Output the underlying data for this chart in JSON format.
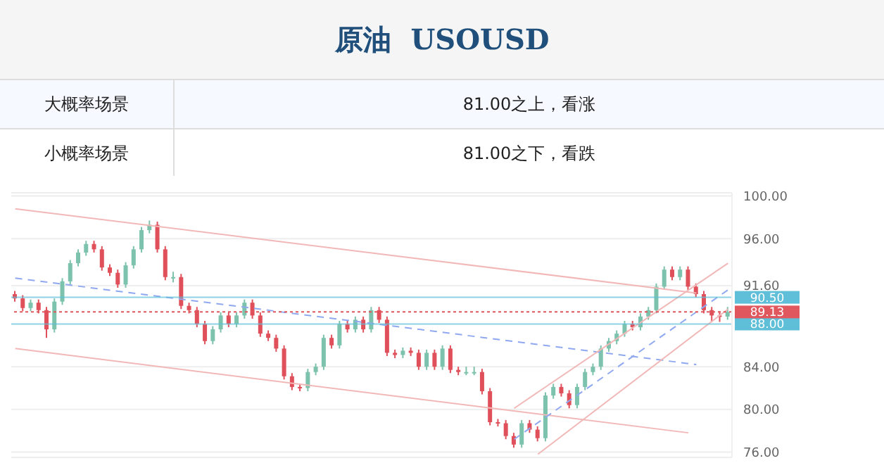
{
  "chart_data": {
    "type": "candlestick",
    "title": "原油  USOUSD",
    "annotations": [
      "大概率场景",
      "81.00之上，看涨",
      "小概率场景",
      "81.00之下，看跌"
    ],
    "categories": [
      null,
      null,
      null,
      null,
      null,
      null,
      null,
      null,
      null,
      null,
      null,
      null,
      null,
      null,
      null,
      null,
      null,
      null,
      null,
      null,
      null,
      null,
      null,
      null,
      null,
      null,
      null,
      null,
      null,
      null,
      null,
      null,
      null,
      null,
      null,
      null,
      null,
      null,
      null,
      null,
      null,
      null,
      null,
      null,
      null,
      null,
      null,
      null,
      null,
      null,
      null,
      null,
      null,
      null,
      null,
      null,
      null,
      null,
      null,
      null,
      null,
      null,
      null,
      null,
      null,
      null,
      null,
      null,
      null,
      null,
      null,
      null,
      null,
      null,
      null,
      null,
      null,
      null,
      null,
      null,
      null,
      null,
      null,
      null,
      null,
      null,
      null,
      null,
      null,
      null,
      null
    ],
    "ohlc": [
      [
        90.8,
        91.1,
        90.1,
        90.4
      ],
      [
        90.4,
        90.7,
        89.2,
        89.5
      ],
      [
        89.5,
        90.3,
        89.2,
        90
      ],
      [
        90,
        90.3,
        89,
        89.3
      ],
      [
        89.3,
        89.6,
        86.7,
        87.5
      ],
      [
        87.5,
        90.4,
        87.2,
        90.1
      ],
      [
        90.1,
        92.3,
        89.8,
        92
      ],
      [
        92,
        94,
        91.7,
        93.7
      ],
      [
        93.7,
        95,
        93.4,
        94.7
      ],
      [
        94.7,
        95.8,
        94.4,
        95.5
      ],
      [
        95.5,
        95.8,
        94.7,
        95
      ],
      [
        95,
        95.3,
        93,
        93.3
      ],
      [
        93.3,
        93.6,
        92.5,
        92.8
      ],
      [
        92.8,
        93.1,
        91.4,
        91.7
      ],
      [
        91.7,
        93.8,
        91.4,
        93.5
      ],
      [
        93.5,
        95.3,
        93.2,
        95
      ],
      [
        95,
        97.1,
        94.7,
        96.8
      ],
      [
        96.8,
        97.7,
        96.5,
        97.3
      ],
      [
        97.3,
        97.6,
        94.7,
        95
      ],
      [
        95,
        95.3,
        92.1,
        92.4
      ],
      [
        92.4,
        92.9,
        91.9,
        92.4
      ],
      [
        92.4,
        92.7,
        89.4,
        89.7
      ],
      [
        89.7,
        90,
        89,
        89.3
      ],
      [
        89.3,
        89.6,
        87.7,
        88
      ],
      [
        88,
        88.3,
        86.1,
        86.4
      ],
      [
        86.4,
        87.8,
        86.1,
        87.5
      ],
      [
        87.5,
        89.1,
        87.2,
        88.8
      ],
      [
        88.8,
        89.1,
        87.7,
        88
      ],
      [
        88,
        89.1,
        87.7,
        88.8
      ],
      [
        88.8,
        90.3,
        88.5,
        90
      ],
      [
        90,
        90.3,
        88.5,
        88.8
      ],
      [
        88.8,
        89.1,
        86.8,
        87.1
      ],
      [
        87.1,
        87.4,
        86.4,
        86.7
      ],
      [
        86.7,
        87,
        85.4,
        85.7
      ],
      [
        85.7,
        86,
        82.8,
        83.1
      ],
      [
        83.1,
        83.4,
        81.8,
        82.1
      ],
      [
        82.1,
        82.4,
        81.7,
        82
      ],
      [
        82,
        83.8,
        81.7,
        83.5
      ],
      [
        83.5,
        84.3,
        83.2,
        84
      ],
      [
        84,
        87,
        83.7,
        86.7
      ],
      [
        86.7,
        87,
        85.7,
        86
      ],
      [
        86,
        88.3,
        85.7,
        88
      ],
      [
        88,
        88.3,
        87.2,
        87.5
      ],
      [
        87.5,
        88.7,
        87.2,
        88.4
      ],
      [
        88.4,
        88.7,
        87.2,
        87.5
      ],
      [
        87.5,
        89.6,
        87.2,
        89.3
      ],
      [
        89.3,
        89.6,
        88.1,
        88.4
      ],
      [
        88.4,
        88.7,
        85,
        85.3
      ],
      [
        85.3,
        85.6,
        84.8,
        85.1
      ],
      [
        85.1,
        85.8,
        84.8,
        85.5
      ],
      [
        85.5,
        85.8,
        85,
        85.3
      ],
      [
        85.3,
        85.6,
        83.7,
        84
      ],
      [
        84,
        85.6,
        83.7,
        85.3
      ],
      [
        85.3,
        85.6,
        83.7,
        84
      ],
      [
        84,
        86,
        83.7,
        85.7
      ],
      [
        85.7,
        86,
        83.4,
        83.7
      ],
      [
        83.7,
        84,
        83.2,
        83.5
      ],
      [
        83.5,
        84,
        83.2,
        83.5
      ],
      [
        83.5,
        84,
        83.2,
        83.5
      ],
      [
        83.5,
        83.8,
        81.4,
        81.7
      ],
      [
        81.7,
        82,
        78.5,
        78.8
      ],
      [
        78.8,
        79.1,
        78.4,
        78.7
      ],
      [
        78.7,
        79,
        77.2,
        77.5
      ],
      [
        77.5,
        77.8,
        76.4,
        76.7
      ],
      [
        76.7,
        79,
        76.4,
        78.7
      ],
      [
        78.7,
        79,
        77.8,
        78.1
      ],
      [
        78.1,
        78.4,
        77,
        77.3
      ],
      [
        77.3,
        81.6,
        77,
        81.3
      ],
      [
        81.3,
        82.4,
        81,
        82.1
      ],
      [
        82.1,
        82.4,
        81.2,
        81.5
      ],
      [
        81.5,
        81.8,
        80.1,
        80.4
      ],
      [
        80.4,
        82.4,
        80.1,
        82.1
      ],
      [
        82.1,
        83.8,
        81.8,
        83.5
      ],
      [
        83.5,
        84.3,
        83.2,
        84
      ],
      [
        84,
        86,
        83.7,
        85.7
      ],
      [
        85.7,
        86.7,
        85.4,
        86.4
      ],
      [
        86.4,
        87.4,
        86.1,
        87.1
      ],
      [
        87.1,
        88.3,
        86.8,
        88
      ],
      [
        88,
        88.3,
        87.4,
        87.7
      ],
      [
        87.7,
        89,
        87.4,
        88.7
      ],
      [
        88.7,
        89.6,
        88.4,
        89.3
      ],
      [
        89.3,
        91.8,
        89,
        91.5
      ],
      [
        91.5,
        93.4,
        91.2,
        93.1
      ],
      [
        93.1,
        93.4,
        92.1,
        92.4
      ],
      [
        92.4,
        93.4,
        92.1,
        93.1
      ],
      [
        93.1,
        93.4,
        91.2,
        91.5
      ],
      [
        91.5,
        91.8,
        90.5,
        90.8
      ],
      [
        90.8,
        91.1,
        89,
        89.3
      ],
      [
        89.3,
        89.6,
        88.2,
        88.8
      ],
      [
        88.8,
        89.2,
        88.2,
        88.7
      ],
      [
        88.7,
        89.6,
        88.4,
        89.13
      ]
    ],
    "series": [
      {
        "type": "line",
        "color": "#f2b8b8",
        "values": [
          98.8,
          null,
          null,
          null,
          null,
          null,
          null,
          null,
          null,
          null,
          null,
          null,
          null,
          null,
          null,
          null,
          null,
          null,
          null,
          null,
          null,
          null,
          null,
          null,
          null,
          null,
          null,
          null,
          null,
          null,
          null,
          null,
          null,
          null,
          null,
          null,
          null,
          null,
          null,
          null,
          null,
          null,
          null,
          null,
          null,
          null,
          null,
          null,
          null,
          null,
          null,
          null,
          null,
          null,
          null,
          null,
          null,
          null,
          null,
          null,
          null,
          null,
          null,
          null,
          null,
          null,
          null,
          null,
          null,
          null,
          null,
          null,
          null,
          null,
          null,
          null,
          null,
          null,
          null,
          null,
          null,
          null,
          null,
          null,
          null,
          null,
          90.9,
          null,
          null,
          null,
          null
        ]
      },
      {
        "type": "line",
        "color": "#f2b8b8",
        "values": [
          85.7,
          null,
          null,
          null,
          null,
          null,
          null,
          null,
          null,
          null,
          null,
          null,
          null,
          null,
          null,
          null,
          null,
          null,
          null,
          null,
          null,
          null,
          null,
          null,
          null,
          null,
          null,
          null,
          null,
          null,
          null,
          null,
          null,
          null,
          null,
          null,
          null,
          null,
          null,
          null,
          null,
          null,
          null,
          null,
          null,
          null,
          null,
          null,
          null,
          null,
          null,
          null,
          null,
          null,
          null,
          null,
          null,
          null,
          null,
          null,
          null,
          null,
          null,
          null,
          null,
          null,
          null,
          null,
          null,
          null,
          null,
          null,
          null,
          null,
          null,
          null,
          null,
          null,
          null,
          null,
          null,
          null,
          null,
          null,
          null,
          77.8,
          null,
          null,
          null,
          null,
          null
        ]
      },
      {
        "type": "line",
        "color": "#8fa8f0",
        "line_style": "dashed",
        "values": [
          92.3,
          null,
          null,
          null,
          null,
          null,
          null,
          null,
          null,
          null,
          null,
          null,
          null,
          null,
          null,
          null,
          null,
          null,
          null,
          null,
          null,
          null,
          null,
          null,
          null,
          null,
          null,
          null,
          null,
          null,
          null,
          null,
          null,
          null,
          null,
          null,
          null,
          null,
          null,
          null,
          null,
          null,
          null,
          null,
          null,
          null,
          null,
          null,
          null,
          null,
          null,
          null,
          null,
          null,
          null,
          null,
          null,
          null,
          null,
          null,
          null,
          null,
          null,
          null,
          null,
          null,
          null,
          null,
          null,
          null,
          null,
          null,
          null,
          null,
          null,
          null,
          null,
          null,
          null,
          null,
          null,
          null,
          null,
          null,
          null,
          null,
          84.2,
          null,
          null,
          null,
          null
        ]
      },
      {
        "type": "line",
        "color": "#f2b8b8",
        "values": [
          null,
          null,
          null,
          null,
          null,
          null,
          null,
          null,
          null,
          null,
          null,
          null,
          null,
          null,
          null,
          null,
          null,
          null,
          null,
          null,
          null,
          null,
          null,
          null,
          null,
          null,
          null,
          null,
          null,
          null,
          null,
          null,
          null,
          null,
          null,
          null,
          null,
          null,
          null,
          null,
          null,
          null,
          null,
          null,
          null,
          null,
          null,
          null,
          null,
          null,
          null,
          null,
          null,
          null,
          null,
          null,
          null,
          null,
          null,
          null,
          null,
          null,
          null,
          80.1,
          null,
          null,
          null,
          null,
          null,
          null,
          null,
          null,
          null,
          null,
          null,
          null,
          null,
          null,
          null,
          null,
          null,
          null,
          null,
          null,
          null,
          null,
          null,
          null,
          null,
          null,
          93.7
        ]
      },
      {
        "type": "line",
        "color": "#f2b8b8",
        "values": [
          null,
          null,
          null,
          null,
          null,
          null,
          null,
          null,
          null,
          null,
          null,
          null,
          null,
          null,
          null,
          null,
          null,
          null,
          null,
          null,
          null,
          null,
          null,
          null,
          null,
          null,
          null,
          null,
          null,
          null,
          null,
          null,
          null,
          null,
          null,
          null,
          null,
          null,
          null,
          null,
          null,
          null,
          null,
          null,
          null,
          null,
          null,
          null,
          null,
          null,
          null,
          null,
          null,
          null,
          null,
          null,
          null,
          null,
          null,
          null,
          null,
          null,
          null,
          null,
          null,
          null,
          75.8,
          null,
          null,
          null,
          null,
          null,
          null,
          null,
          null,
          null,
          null,
          null,
          null,
          null,
          null,
          null,
          null,
          null,
          null,
          null,
          null,
          null,
          null,
          null,
          89.4
        ]
      },
      {
        "type": "line",
        "color": "#8fa8f0",
        "line_style": "dashed",
        "values": [
          null,
          null,
          null,
          null,
          null,
          null,
          null,
          null,
          null,
          null,
          null,
          null,
          null,
          null,
          null,
          null,
          null,
          null,
          null,
          null,
          null,
          null,
          null,
          null,
          null,
          null,
          null,
          null,
          null,
          null,
          null,
          null,
          null,
          null,
          null,
          null,
          null,
          null,
          null,
          null,
          null,
          null,
          null,
          null,
          null,
          null,
          null,
          null,
          null,
          null,
          null,
          null,
          null,
          null,
          null,
          null,
          null,
          null,
          null,
          null,
          null,
          null,
          null,
          77.2,
          null,
          null,
          null,
          null,
          null,
          null,
          null,
          null,
          null,
          null,
          null,
          null,
          null,
          null,
          null,
          null,
          null,
          null,
          null,
          null,
          null,
          null,
          null,
          null,
          null,
          null,
          91.2
        ]
      }
    ],
    "ylim": [
      75.5,
      100.3
    ],
    "yticks": [
      {
        "value": 100,
        "label": "100.00"
      },
      {
        "value": 96,
        "label": "96.00"
      },
      {
        "value": 91.6,
        "label": "91.60"
      },
      {
        "value": 84,
        "label": "84.00"
      },
      {
        "value": 80,
        "label": "80.00"
      },
      {
        "value": 76,
        "label": "76.00"
      }
    ],
    "tick_labels": "y",
    "grid": "y",
    "ref_lines": [
      {
        "axis": "y",
        "value": 90.5,
        "label": "90.50",
        "color": "#5fbfd8",
        "line_style": "solid"
      },
      {
        "axis": "y",
        "value": 88,
        "label": "88.00",
        "color": "#5fbfd8",
        "line_style": "solid"
      },
      {
        "axis": "y",
        "value": 89.13,
        "label": "89.13",
        "color": "#e0585e",
        "line_style": "dotted"
      }
    ]
  }
}
